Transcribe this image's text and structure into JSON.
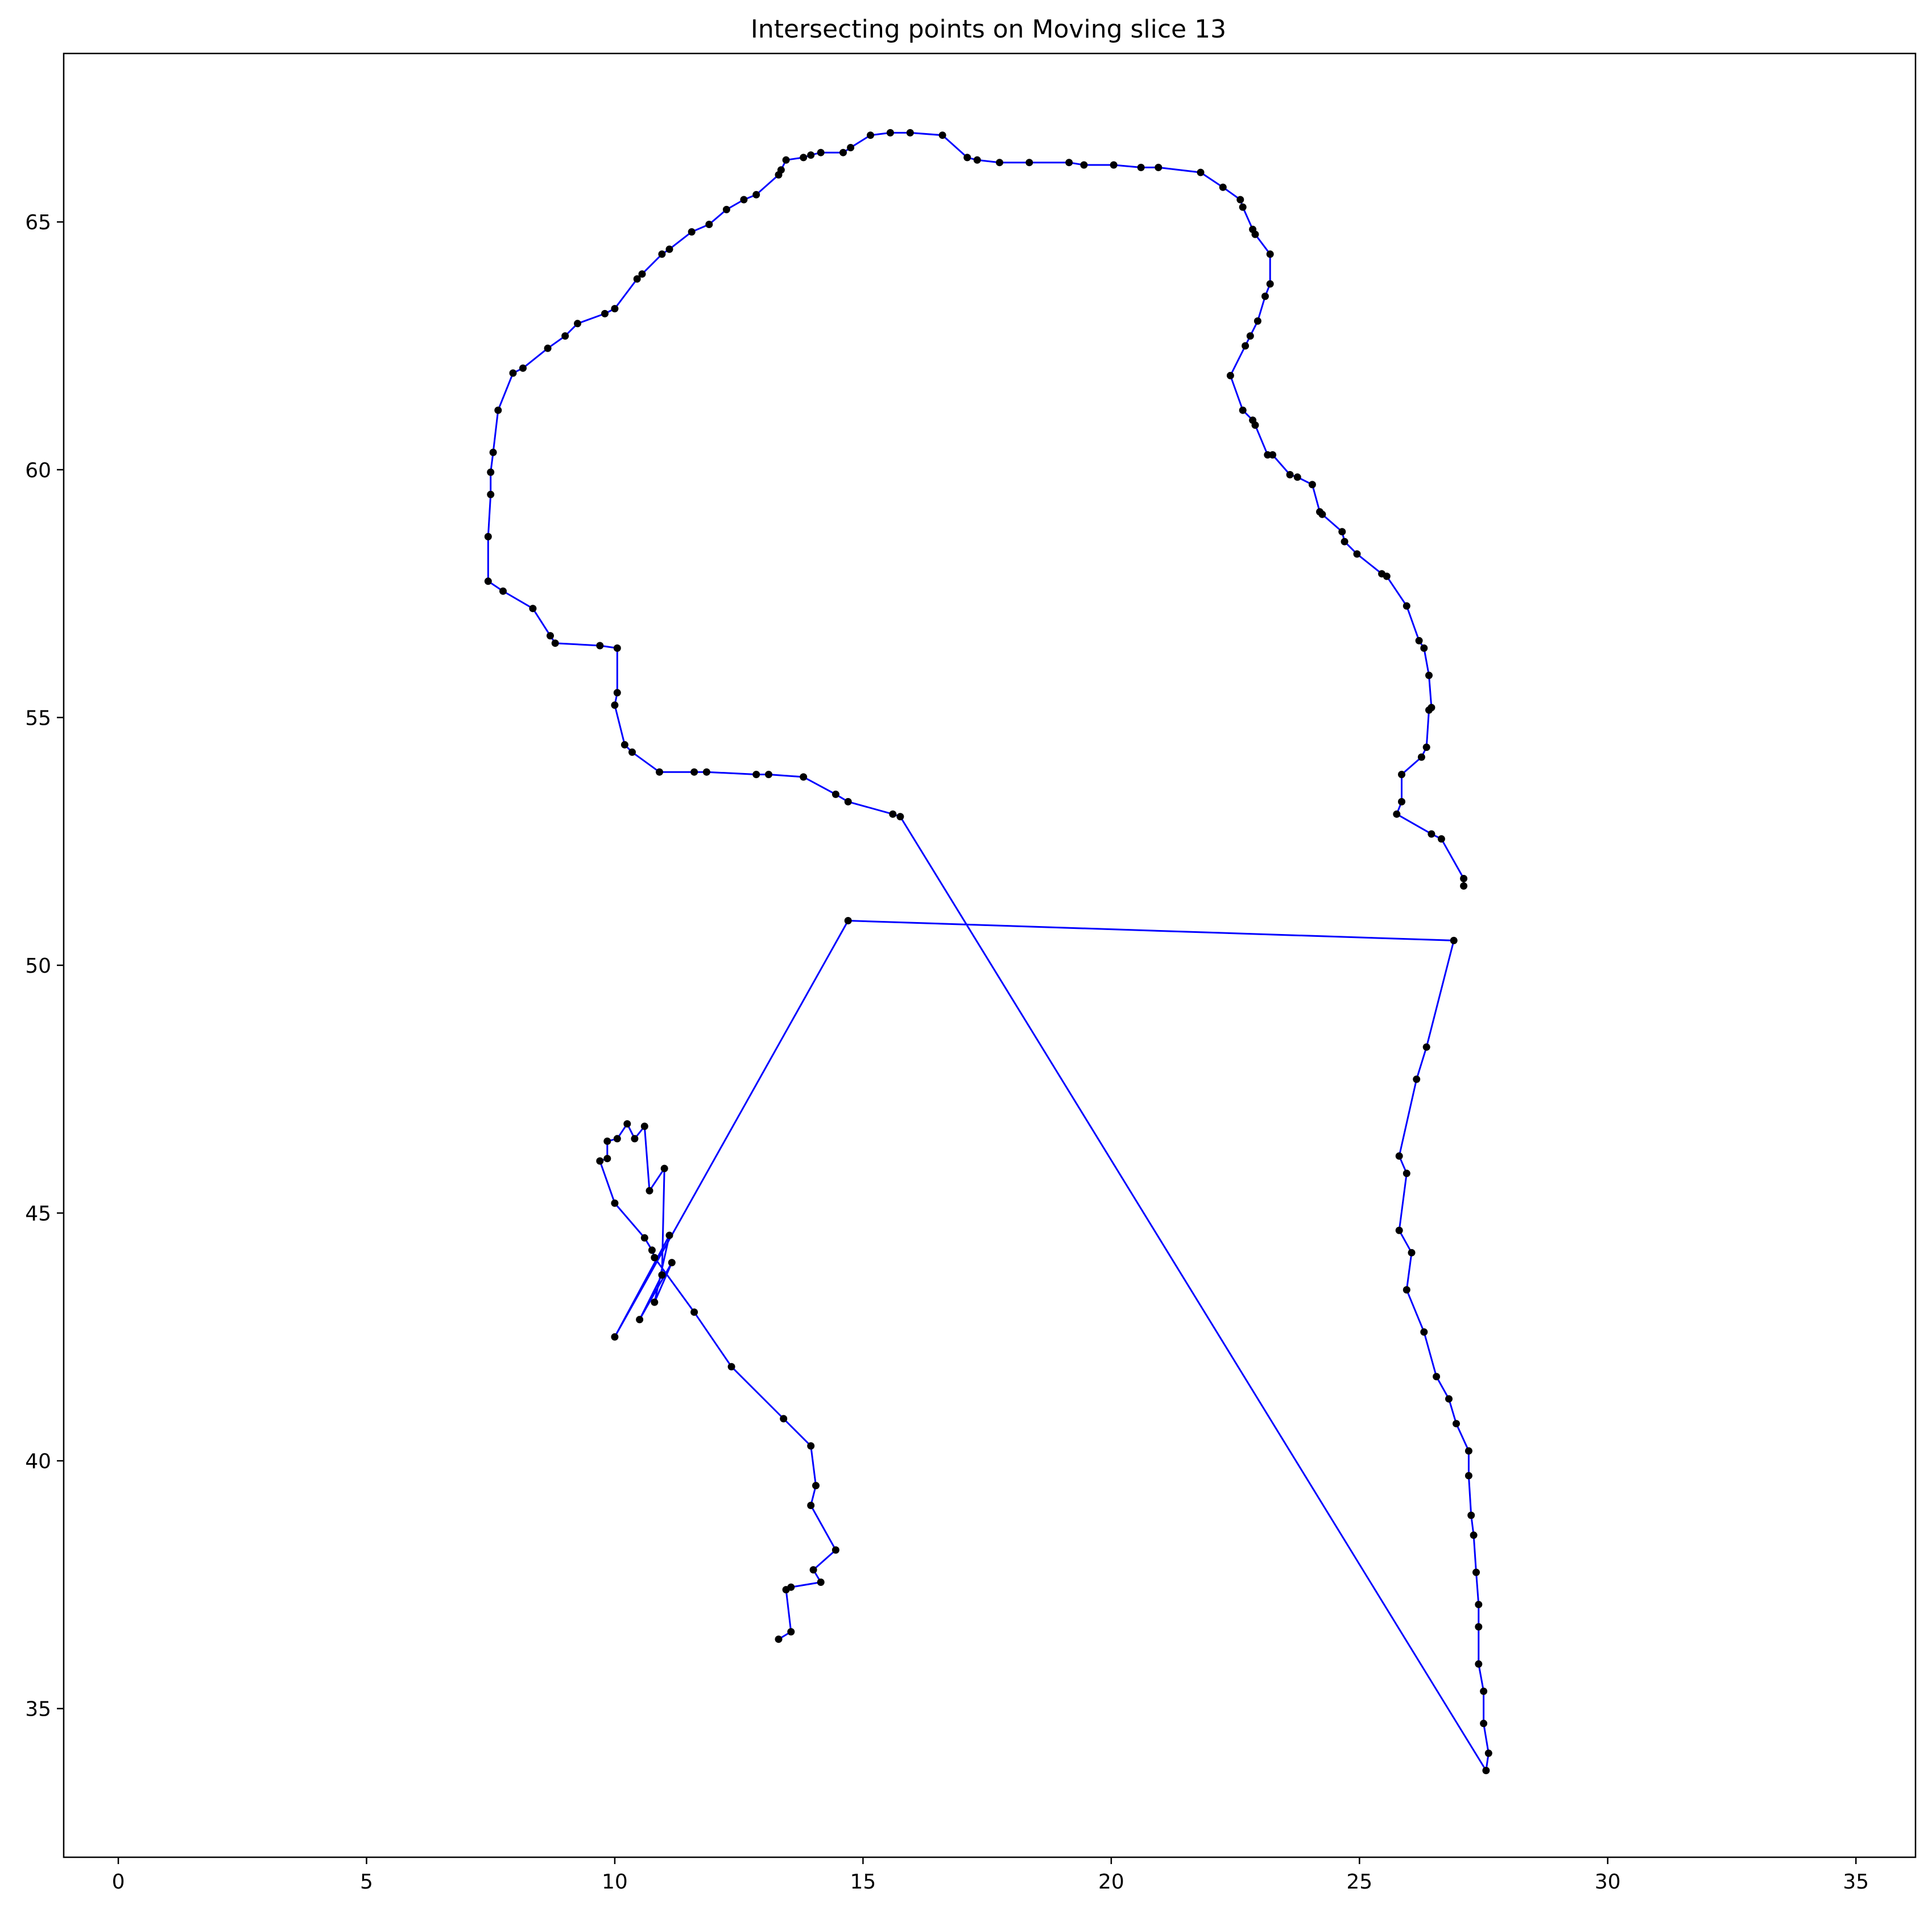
{
  "chart_data": {
    "type": "line",
    "title": "Intersecting points on Moving slice 13",
    "xlabel": "",
    "ylabel": "",
    "xlim": [
      -1.1,
      36.2
    ],
    "ylim": [
      32.0,
      68.4
    ],
    "x_ticks": [
      0,
      5,
      10,
      15,
      20,
      25,
      30,
      35
    ],
    "y_ticks": [
      35,
      40,
      45,
      50,
      55,
      60,
      65
    ],
    "grid": false,
    "legend": "none",
    "colors": {
      "line": "#0000ff",
      "marker": "#000000",
      "axes": "#000000"
    },
    "series": [
      {
        "name": "contour",
        "points": [
          [
            27.1,
            51.6
          ],
          [
            27.1,
            51.75
          ],
          [
            26.65,
            52.55
          ],
          [
            26.45,
            52.65
          ],
          [
            25.75,
            53.05
          ],
          [
            25.85,
            53.3
          ],
          [
            25.85,
            53.85
          ],
          [
            26.25,
            54.2
          ],
          [
            26.35,
            54.4
          ],
          [
            26.4,
            55.15
          ],
          [
            26.45,
            55.2
          ],
          [
            26.4,
            55.85
          ],
          [
            26.3,
            56.4
          ],
          [
            26.2,
            56.55
          ],
          [
            25.95,
            57.25
          ],
          [
            25.55,
            57.85
          ],
          [
            25.45,
            57.9
          ],
          [
            24.95,
            58.3
          ],
          [
            24.7,
            58.55
          ],
          [
            24.65,
            58.75
          ],
          [
            24.25,
            59.1
          ],
          [
            24.2,
            59.15
          ],
          [
            24.05,
            59.7
          ],
          [
            23.75,
            59.85
          ],
          [
            23.6,
            59.9
          ],
          [
            23.25,
            60.3
          ],
          [
            23.15,
            60.3
          ],
          [
            22.9,
            60.9
          ],
          [
            22.85,
            61.0
          ],
          [
            22.65,
            61.2
          ],
          [
            22.4,
            61.9
          ],
          [
            22.7,
            62.5
          ],
          [
            22.8,
            62.7
          ],
          [
            22.95,
            63.0
          ],
          [
            23.1,
            63.5
          ],
          [
            23.2,
            63.75
          ],
          [
            23.2,
            64.35
          ],
          [
            22.9,
            64.75
          ],
          [
            22.85,
            64.85
          ],
          [
            22.65,
            65.3
          ],
          [
            22.6,
            65.45
          ],
          [
            22.25,
            65.7
          ],
          [
            21.8,
            66.0
          ],
          [
            20.95,
            66.1
          ],
          [
            20.6,
            66.1
          ],
          [
            20.05,
            66.15
          ],
          [
            19.45,
            66.15
          ],
          [
            19.15,
            66.2
          ],
          [
            18.35,
            66.2
          ],
          [
            17.75,
            66.2
          ],
          [
            17.3,
            66.25
          ],
          [
            17.1,
            66.3
          ],
          [
            16.6,
            66.75
          ],
          [
            15.95,
            66.8
          ],
          [
            15.55,
            66.8
          ],
          [
            15.15,
            66.75
          ],
          [
            14.75,
            66.5
          ],
          [
            14.6,
            66.4
          ],
          [
            14.15,
            66.4
          ],
          [
            13.95,
            66.35
          ],
          [
            13.8,
            66.3
          ],
          [
            13.45,
            66.25
          ],
          [
            13.35,
            66.05
          ],
          [
            13.3,
            65.95
          ],
          [
            12.85,
            65.55
          ],
          [
            12.6,
            65.45
          ],
          [
            12.25,
            65.25
          ],
          [
            11.9,
            64.95
          ],
          [
            11.55,
            64.8
          ],
          [
            11.1,
            64.45
          ],
          [
            10.95,
            64.35
          ],
          [
            10.55,
            63.95
          ],
          [
            10.45,
            63.85
          ],
          [
            10.0,
            63.25
          ],
          [
            9.8,
            63.15
          ],
          [
            9.25,
            62.95
          ],
          [
            9.0,
            62.7
          ],
          [
            8.65,
            62.45
          ],
          [
            8.15,
            62.05
          ],
          [
            7.95,
            61.95
          ],
          [
            7.65,
            61.2
          ],
          [
            7.55,
            60.35
          ],
          [
            7.5,
            59.95
          ],
          [
            7.5,
            59.5
          ],
          [
            7.45,
            58.65
          ],
          [
            7.45,
            57.75
          ],
          [
            7.75,
            57.55
          ],
          [
            8.35,
            57.2
          ],
          [
            8.7,
            56.65
          ],
          [
            8.8,
            56.5
          ],
          [
            9.7,
            56.45
          ],
          [
            10.05,
            56.4
          ],
          [
            10.05,
            55.5
          ],
          [
            10.0,
            55.25
          ],
          [
            10.2,
            54.45
          ],
          [
            10.35,
            54.3
          ],
          [
            10.9,
            53.9
          ],
          [
            11.6,
            53.9
          ],
          [
            11.85,
            53.9
          ],
          [
            12.85,
            53.85
          ],
          [
            13.1,
            53.85
          ],
          [
            13.8,
            53.8
          ],
          [
            14.45,
            53.45
          ],
          [
            14.7,
            53.3
          ],
          [
            15.6,
            53.05
          ],
          [
            15.75,
            53.0
          ],
          [
            27.55,
            33.75
          ],
          [
            27.6,
            34.1
          ],
          [
            27.5,
            34.7
          ],
          [
            27.5,
            35.35
          ],
          [
            27.4,
            35.9
          ],
          [
            27.4,
            36.65
          ],
          [
            27.4,
            37.1
          ],
          [
            27.35,
            37.75
          ],
          [
            27.3,
            38.5
          ],
          [
            27.25,
            38.9
          ],
          [
            27.2,
            39.7
          ],
          [
            27.2,
            40.2
          ],
          [
            26.95,
            40.75
          ],
          [
            26.8,
            41.25
          ],
          [
            26.55,
            41.7
          ],
          [
            26.3,
            42.6
          ],
          [
            25.95,
            43.45
          ],
          [
            26.05,
            44.2
          ],
          [
            25.8,
            44.65
          ],
          [
            25.95,
            45.8
          ],
          [
            25.8,
            46.15
          ],
          [
            26.15,
            47.7
          ],
          [
            26.35,
            48.35
          ],
          [
            26.9,
            50.5
          ],
          [
            14.7,
            50.9
          ],
          [
            10.0,
            42.5
          ],
          [
            11.1,
            44.55
          ],
          [
            10.8,
            43.2
          ],
          [
            11.15,
            44.0
          ],
          [
            10.5,
            42.85
          ],
          [
            10.95,
            43.75
          ],
          [
            11.0,
            45.9
          ],
          [
            10.7,
            45.45
          ],
          [
            10.6,
            46.75
          ],
          [
            10.4,
            46.5
          ],
          [
            10.25,
            46.8
          ],
          [
            10.05,
            46.5
          ],
          [
            9.85,
            46.45
          ],
          [
            9.85,
            46.1
          ],
          [
            9.7,
            46.05
          ],
          [
            10.0,
            45.2
          ],
          [
            10.6,
            44.5
          ],
          [
            10.75,
            44.25
          ],
          [
            10.8,
            44.1
          ],
          [
            11.6,
            43.0
          ],
          [
            12.35,
            41.9
          ],
          [
            13.4,
            40.85
          ],
          [
            13.95,
            40.3
          ],
          [
            14.05,
            39.5
          ],
          [
            13.95,
            39.1
          ],
          [
            14.45,
            38.2
          ],
          [
            14.0,
            37.8
          ],
          [
            14.15,
            37.55
          ],
          [
            13.55,
            37.45
          ],
          [
            13.45,
            37.4
          ],
          [
            13.55,
            36.55
          ],
          [
            13.3,
            36.4
          ]
        ]
      }
    ]
  }
}
